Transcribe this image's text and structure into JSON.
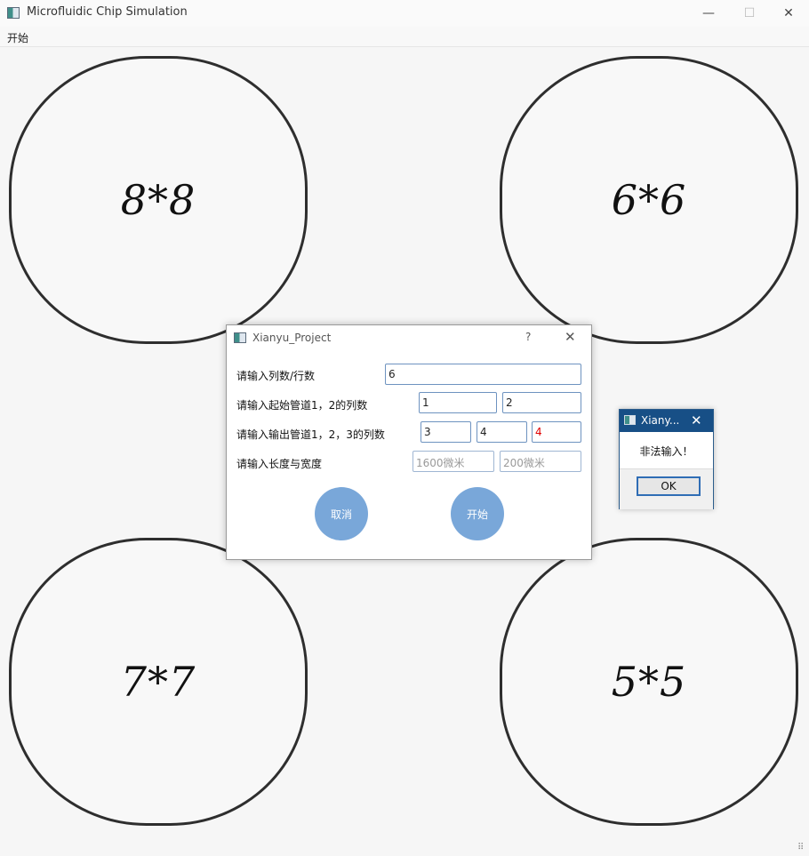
{
  "window": {
    "title": "Microfluidic Chip Simulation",
    "min_icon": "minimize-icon",
    "max_icon": "maximize-icon",
    "close_icon": "close-icon",
    "min_glyph": "—",
    "max_glyph": "☐",
    "close_glyph": "✕"
  },
  "menu": {
    "start": "开始"
  },
  "chips": {
    "top_left": "8*8",
    "top_right": "6*6",
    "bottom_left": "7*7",
    "bottom_right": "5*5"
  },
  "dialog": {
    "title": "Xianyu_Project",
    "help": "?",
    "close": "✕",
    "labels": {
      "rows_cols": "请输入列数/行数",
      "inlet": "请输入起始管道1，2的列数",
      "outlet": "请输入输出管道1，2，3的列数",
      "size": "请输入长度与宽度"
    },
    "values": {
      "rows_cols": "6",
      "inlet1": "1",
      "inlet2": "2",
      "outlet1": "3",
      "outlet2": "4",
      "outlet3": "4",
      "length_placeholder": "1600微米",
      "width_placeholder": "200微米"
    },
    "buttons": {
      "cancel": "取消",
      "start": "开始"
    },
    "colors": {
      "button": "#79a7d9",
      "error_text": "#e00000"
    }
  },
  "message_box": {
    "title": "Xiany...",
    "close": "✕",
    "text": "非法输入！",
    "ok": "OK"
  },
  "grip": "⠿"
}
